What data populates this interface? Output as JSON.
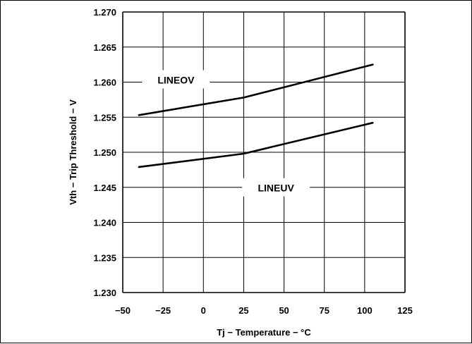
{
  "chart_data": {
    "type": "line",
    "title": "",
    "xlabel": "Tj − Temperature − °C",
    "ylabel": "Vth − Trip Threshold − V",
    "xlim": [
      -50,
      125
    ],
    "ylim": [
      1.23,
      1.27
    ],
    "x_ticks": [
      -50,
      -25,
      0,
      25,
      50,
      75,
      100,
      125
    ],
    "x_tick_labels": [
      "−50",
      "−25",
      "0",
      "25",
      "50",
      "75",
      "100",
      "125"
    ],
    "y_ticks": [
      1.23,
      1.235,
      1.24,
      1.245,
      1.25,
      1.255,
      1.26,
      1.265,
      1.27
    ],
    "y_tick_labels": [
      "1.230",
      "1.235",
      "1.240",
      "1.245",
      "1.250",
      "1.255",
      "1.260",
      "1.265",
      "1.270"
    ],
    "grid": true,
    "series": [
      {
        "name": "LINEOV",
        "x": [
          -40,
          25,
          105
        ],
        "values": [
          1.2553,
          1.2578,
          1.2625
        ],
        "label_at": {
          "x": -17,
          "y": 1.2603
        }
      },
      {
        "name": "LINEUV",
        "x": [
          -40,
          25,
          105
        ],
        "values": [
          1.2479,
          1.2498,
          1.2542
        ],
        "label_at": {
          "x": 45,
          "y": 1.2449
        }
      }
    ],
    "line_color": "#000000",
    "grid_color": "#000000"
  }
}
